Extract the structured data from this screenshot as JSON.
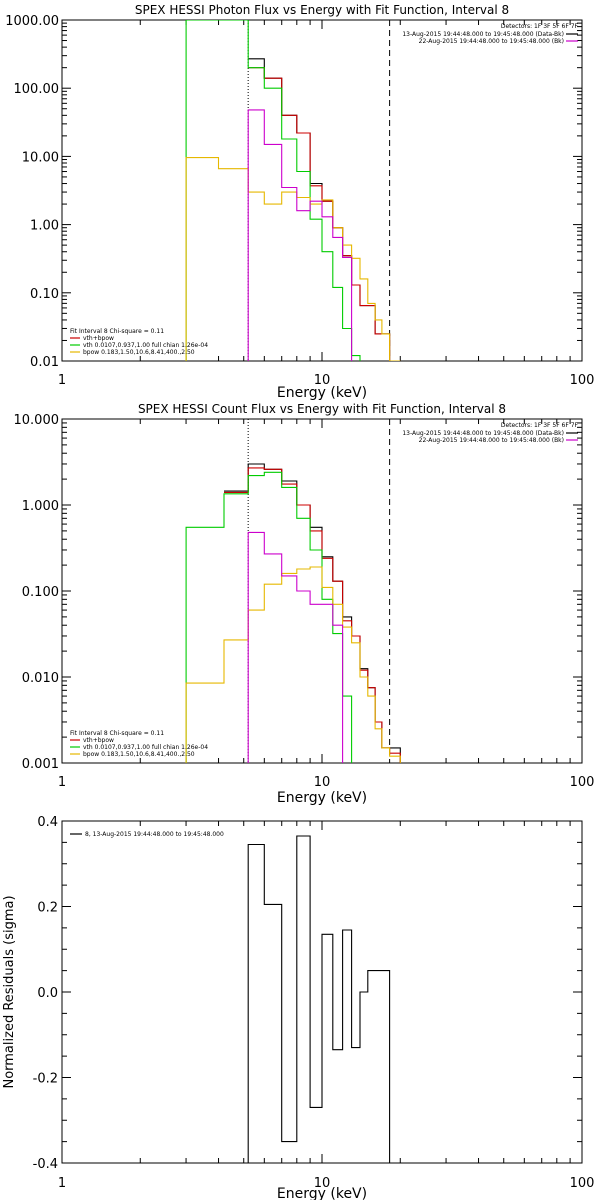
{
  "colors": {
    "total": "#000000",
    "model_total": "#cc0000",
    "vth": "#00cc00",
    "bpow": "#e6b800",
    "background": "#cc00cc"
  },
  "chart_data": [
    {
      "type": "line",
      "title": "SPEX HESSI Photon Flux vs Energy with Fit Function, Interval 8",
      "xlabel": "Energy (keV)",
      "ylabel": "",
      "xscale": "log",
      "yscale": "log",
      "xlim": [
        1,
        100
      ],
      "ylim": [
        0.01,
        1000
      ],
      "xticks": [
        "1",
        "10",
        "100"
      ],
      "yticks": [
        "1000.00",
        "100.00",
        "10.00",
        "1.00",
        "0.10",
        "0.01"
      ],
      "legend_top": {
        "detectors": "Detectors: 1F 3F 5F 6F 7F",
        "lines": [
          {
            "label": "13-Aug-2015 19:44:48.000 to 19:45:48.000 (Data-Bk)",
            "color": "#000000"
          },
          {
            "label": "22-Aug-2015 19:44:48.000 to 19:45:48.000 (Bk)",
            "color": "#cc00cc"
          }
        ]
      },
      "legend_bottom": {
        "header": "Fit Interval 8   Chi-square = 0.11",
        "lines": [
          {
            "label": "vth+bpow",
            "color": "#cc0000"
          },
          {
            "label": "vth 0.0107,0.937,1.00  full chian 1.26e-04",
            "color": "#00cc00"
          },
          {
            "label": "bpow 0.183,1.50,10.6,8.41,400.,2.50",
            "color": "#e6b800"
          }
        ]
      },
      "markers": {
        "dotted_x": 5.2,
        "dashed_x": 18.2
      },
      "series": [
        {
          "name": "Data-Bk",
          "edges": [
            5.2,
            6.0,
            7.0,
            8.0,
            9.0,
            10.0,
            11.0,
            12.0,
            13.0,
            14.0,
            15.0,
            16.0,
            17.0,
            18.2
          ],
          "values": [
            270,
            140,
            40,
            22,
            4.0,
            2.2,
            0.9,
            0.35,
            0.13,
            0.065,
            0.065,
            0.025,
            0.025
          ]
        },
        {
          "name": "vth+bpow",
          "edges": [
            5.2,
            6.0,
            7.0,
            8.0,
            9.0,
            10.0,
            11.0,
            12.0,
            13.0,
            14.0,
            15.0,
            16.0,
            17.0,
            18.2,
            20.0
          ],
          "values": [
            200,
            140,
            40,
            22,
            3.7,
            2.2,
            0.9,
            0.35,
            0.13,
            0.065,
            0.065,
            0.025,
            0.025,
            0.01
          ]
        },
        {
          "name": "vth",
          "edges": [
            4.2,
            5.2,
            6.0,
            7.0,
            8.0,
            9.0,
            10.0,
            11.0,
            12.0,
            13.0,
            14.0
          ],
          "values": [
            1000,
            200,
            100,
            18,
            6.0,
            1.2,
            0.4,
            0.12,
            0.03,
            0.012
          ],
          "lead": {
            "x": 3.0,
            "from": 0.01,
            "to": 1000,
            "top": 1000
          }
        },
        {
          "name": "bpow",
          "edges": [
            3.0,
            4.0,
            5.2,
            6.0,
            7.0,
            8.0,
            9.0,
            10.0,
            11.0,
            12.0,
            13.0,
            14.0,
            15.0,
            16.0,
            17.0,
            18.2,
            20.0
          ],
          "values": [
            9.6,
            6.6,
            3.0,
            2.0,
            3.0,
            2.5,
            2.0,
            2.3,
            0.9,
            0.5,
            0.32,
            0.16,
            0.07,
            0.04,
            0.025,
            0.01
          ],
          "dropStart": true
        },
        {
          "name": "Bk",
          "edges": [
            5.2,
            6.0,
            7.0,
            8.0,
            9.0,
            10.0,
            11.0,
            12.0,
            13.0
          ],
          "values": [
            48,
            15,
            3.5,
            1.6,
            2.2,
            1.3,
            0.65,
            0.33
          ],
          "dropStart": true
        }
      ]
    },
    {
      "type": "line",
      "title": "SPEX HESSI Count Flux vs Energy with Fit Function, Interval 8",
      "xlabel": "Energy (keV)",
      "ylabel": "",
      "xscale": "log",
      "yscale": "log",
      "xlim": [
        1,
        100
      ],
      "ylim": [
        0.001,
        10
      ],
      "xticks": [
        "1",
        "10",
        "100"
      ],
      "yticks": [
        "10.000",
        "1.000",
        "0.100",
        "0.010",
        "0.001"
      ],
      "legend_top": {
        "detectors": "Detectors: 1F 3F 5F 6F 7F",
        "lines": [
          {
            "label": "13-Aug-2015 19:44:48.000 to 19:45:48.000 (Data-Bk)",
            "color": "#000000"
          },
          {
            "label": "22-Aug-2015 19:44:48.000 to 19:45:48.000 (Bk)",
            "color": "#cc00cc"
          }
        ]
      },
      "legend_bottom": {
        "header": "Fit Interval 8   Chi-square = 0.11",
        "lines": [
          {
            "label": "vth+bpow",
            "color": "#cc0000"
          },
          {
            "label": "vth 0.0107,0.937,1.00  full chian 1.26e-04",
            "color": "#00cc00"
          },
          {
            "label": "bpow 0.183,1.50,10.6,8.41,400.,2.50",
            "color": "#e6b800"
          }
        ]
      },
      "markers": {
        "dotted_x": 5.2,
        "dashed_x": 18.2
      },
      "series": [
        {
          "name": "Data-Bk",
          "edges": [
            4.2,
            5.2,
            6.0,
            7.0,
            8.0,
            9.0,
            10.0,
            11.0,
            12.0,
            13.0,
            14.0,
            15.0,
            16.0,
            17.0,
            18.2,
            20.0
          ],
          "values": [
            1.45,
            3.0,
            2.6,
            1.9,
            1.0,
            0.55,
            0.25,
            0.13,
            0.05,
            0.03,
            0.0125,
            0.0075,
            0.003,
            0.0015,
            0.0015
          ]
        },
        {
          "name": "vth+bpow",
          "edges": [
            4.2,
            5.2,
            6.0,
            7.0,
            8.0,
            9.0,
            10.0,
            11.0,
            12.0,
            13.0,
            14.0,
            15.0,
            16.0,
            17.0,
            18.2,
            20.0
          ],
          "values": [
            1.4,
            2.7,
            2.6,
            1.75,
            1.0,
            0.5,
            0.24,
            0.13,
            0.045,
            0.03,
            0.012,
            0.0075,
            0.003,
            0.0015,
            0.0013
          ]
        },
        {
          "name": "vth",
          "edges": [
            3.0,
            4.2,
            5.2,
            6.0,
            7.0,
            8.0,
            9.0,
            10.0,
            11.0,
            12.0,
            13.0
          ],
          "values": [
            0.55,
            1.35,
            2.2,
            2.4,
            1.6,
            0.7,
            0.3,
            0.08,
            0.032,
            0.006
          ],
          "dropStart": true
        },
        {
          "name": "bpow",
          "edges": [
            3.0,
            4.2,
            5.2,
            6.0,
            7.0,
            8.0,
            9.0,
            10.0,
            11.0,
            12.0,
            13.0,
            14.0,
            15.0,
            16.0,
            17.0,
            18.2,
            20.0
          ],
          "values": [
            0.0085,
            0.027,
            0.06,
            0.12,
            0.16,
            0.18,
            0.19,
            0.11,
            0.07,
            0.038,
            0.025,
            0.01,
            0.006,
            0.0025,
            0.0015,
            0.0012
          ],
          "dropStart": true
        },
        {
          "name": "Bk",
          "edges": [
            5.2,
            6.0,
            7.0,
            8.0,
            9.0,
            10.0,
            11.0,
            12.0
          ],
          "values": [
            0.48,
            0.27,
            0.15,
            0.1,
            0.07,
            0.07,
            0.04
          ],
          "dropStart": true
        }
      ]
    },
    {
      "type": "line",
      "title": "",
      "xlabel": "Energy (keV)",
      "ylabel": "Normalized Residuals (sigma)",
      "xscale": "log",
      "yscale": "linear",
      "xlim": [
        1,
        100
      ],
      "ylim": [
        -0.4,
        0.4
      ],
      "xticks": [
        "1",
        "10",
        "100"
      ],
      "yticks": [
        "0.4",
        "0.2",
        "0.0",
        "-0.2",
        "-0.4"
      ],
      "legend": {
        "label": "8, 13-Aug-2015 19:44:48.000 to 19:45:48.000",
        "color": "#000000"
      },
      "series": [
        {
          "name": "8, 13-Aug-2015 19:44:48.000 to 19:45:48.000",
          "edges": [
            5.2,
            6.0,
            7.0,
            8.0,
            9.0,
            10.0,
            11.0,
            12.0,
            13.0,
            14.0,
            15.0,
            16.0,
            17.0,
            18.2
          ],
          "values": [
            0.345,
            0.205,
            -0.35,
            0.365,
            -0.27,
            0.135,
            -0.135,
            0.145,
            -0.13,
            0.0,
            0.05,
            0.05,
            0.05
          ],
          "dropStart": true,
          "dropEnd": true
        }
      ]
    }
  ]
}
